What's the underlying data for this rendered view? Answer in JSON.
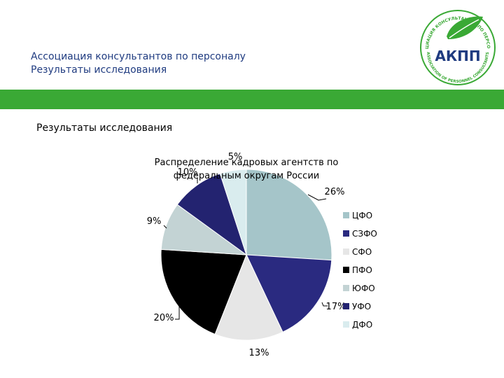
{
  "header": {
    "line1": "Ассоциация консультантов по  персоналу",
    "line2": "Результаты исследования"
  },
  "logo": {
    "name": "АКПП",
    "ring_text_top": "АССОЦИАЦИЯ КОНСУЛЬТАНТОВ ПО ПЕРСОНАЛУ",
    "ring_text_bottom": "ASSOCIATION OF PERSONNEL CONSULTANTS"
  },
  "section": {
    "title": "Результаты исследования"
  },
  "colors": {
    "brand_green": "#3aa935",
    "title_blue": "#1f3b80"
  },
  "chart_data": {
    "type": "pie",
    "title": "Распределение кадровых агентств по федеральным округам России",
    "title_lines": [
      "Распределение кадровых агентств по",
      "федеральным округам России"
    ],
    "categories": [
      "ЦФО",
      "СЗФО",
      "СФО",
      "ПФО",
      "ЮФО",
      "УФО",
      "ДФО"
    ],
    "values": [
      26,
      17,
      13,
      20,
      9,
      10,
      5
    ],
    "labels": [
      "26%",
      "17%",
      "13%",
      "20%",
      "9%",
      "10%",
      "5%"
    ],
    "colors": [
      "#a5c5c9",
      "#2a2a80",
      "#e6e6e6",
      "#000000",
      "#c3d3d4",
      "#232370",
      "#d9ecee"
    ],
    "legend_position": "right"
  }
}
